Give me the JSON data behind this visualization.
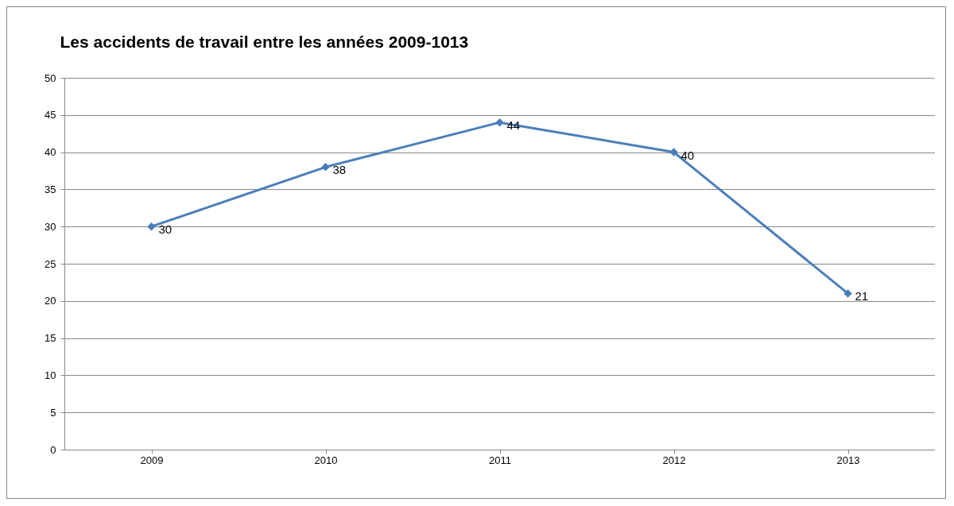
{
  "chart_data": {
    "type": "line",
    "title": "Les accidents de travail entre les années 2009-1013",
    "categories": [
      "2009",
      "2010",
      "2011",
      "2012",
      "2013"
    ],
    "series": [
      {
        "color": "#4a7ebb",
        "values": [
          30,
          38,
          44,
          40,
          21
        ]
      }
    ],
    "ylim": [
      0,
      50
    ],
    "yticks": [
      0,
      5,
      10,
      15,
      20,
      25,
      30,
      35,
      40,
      45,
      50
    ],
    "grid": "y",
    "marker": "diamond",
    "data_labels": true
  }
}
